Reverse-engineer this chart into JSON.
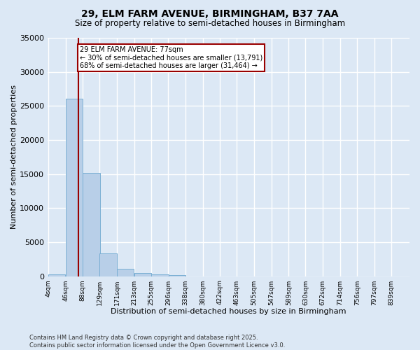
{
  "title_line1": "29, ELM FARM AVENUE, BIRMINGHAM, B37 7AA",
  "title_line2": "Size of property relative to semi-detached houses in Birmingham",
  "xlabel": "Distribution of semi-detached houses by size in Birmingham",
  "ylabel": "Number of semi-detached properties",
  "bin_edges": [
    4,
    46,
    88,
    129,
    171,
    213,
    255,
    296,
    338,
    380,
    422,
    463,
    505,
    547,
    589,
    630,
    672,
    714,
    756,
    797,
    839
  ],
  "bin_labels": [
    "4sqm",
    "46sqm",
    "88sqm",
    "129sqm",
    "171sqm",
    "213sqm",
    "255sqm",
    "296sqm",
    "338sqm",
    "380sqm",
    "422sqm",
    "463sqm",
    "505sqm",
    "547sqm",
    "589sqm",
    "630sqm",
    "672sqm",
    "714sqm",
    "756sqm",
    "797sqm",
    "839sqm"
  ],
  "bar_heights": [
    300,
    26100,
    15200,
    3350,
    1050,
    500,
    300,
    150,
    0,
    0,
    0,
    0,
    0,
    0,
    0,
    0,
    0,
    0,
    0,
    0
  ],
  "bar_color": "#b8cfe8",
  "bar_edgecolor": "#7aafd4",
  "property_size": 77,
  "property_label": "29 ELM FARM AVENUE: 77sqm",
  "pct_smaller": 30,
  "n_smaller": 13791,
  "pct_larger": 68,
  "n_larger": 31464,
  "vline_color": "#990000",
  "annotation_box_color": "#ffffff",
  "annotation_box_edgecolor": "#990000",
  "background_color": "#dce8f5",
  "grid_color": "#ffffff",
  "ylim": [
    0,
    35000
  ],
  "yticks": [
    0,
    5000,
    10000,
    15000,
    20000,
    25000,
    30000,
    35000
  ],
  "footer_line1": "Contains HM Land Registry data © Crown copyright and database right 2025.",
  "footer_line2": "Contains public sector information licensed under the Open Government Licence v3.0."
}
